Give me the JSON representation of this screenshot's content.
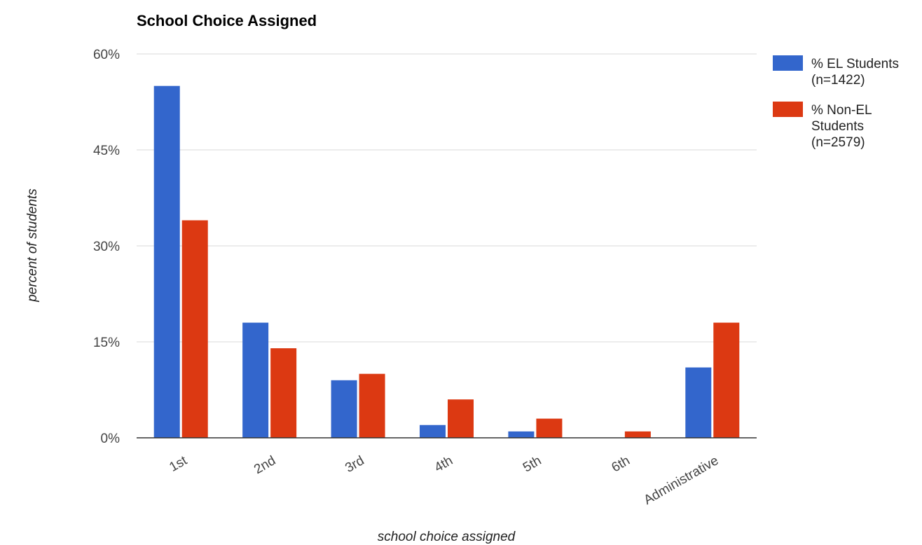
{
  "chart_data": {
    "type": "bar",
    "title": "School Choice Assigned",
    "xlabel": "school choice assigned",
    "ylabel": "percent of students",
    "categories": [
      "1st",
      "2nd",
      "3rd",
      "4th",
      "5th",
      "6th",
      "Administrative"
    ],
    "ylim": [
      0,
      60
    ],
    "yticks": [
      0,
      15,
      30,
      45,
      60
    ],
    "ytick_labels": [
      "0%",
      "15%",
      "30%",
      "45%",
      "60%"
    ],
    "grid": true,
    "legend_position": "right",
    "series": [
      {
        "name": "% EL Students (n=1422)",
        "legend_lines": [
          "% EL Students",
          "(n=1422)"
        ],
        "color": "#3366cc",
        "values": [
          55,
          18,
          9,
          2,
          1,
          0,
          11
        ]
      },
      {
        "name": "% Non-EL Students (n=2579)",
        "legend_lines": [
          "% Non-EL",
          "Students",
          "(n=2579)"
        ],
        "color": "#dc3912",
        "values": [
          34,
          14,
          10,
          6,
          3,
          1,
          18
        ]
      }
    ]
  }
}
